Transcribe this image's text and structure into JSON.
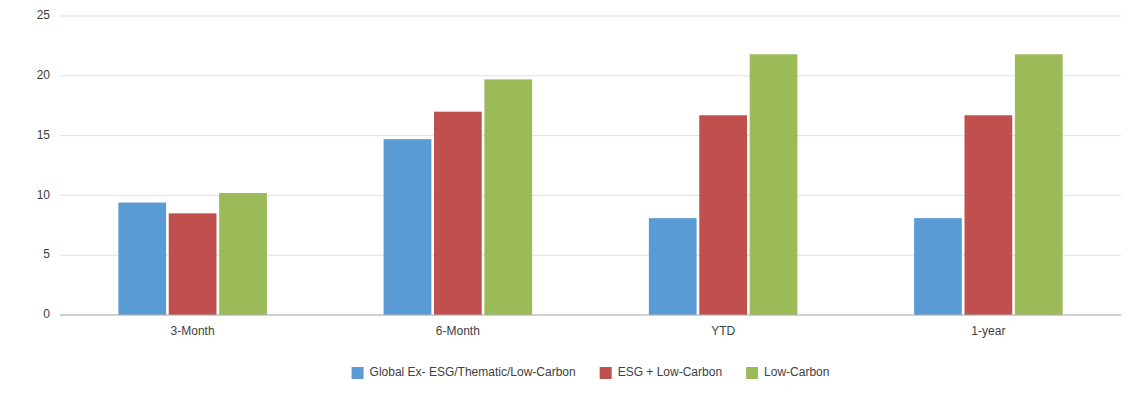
{
  "chart_data": {
    "type": "bar",
    "categories": [
      "3-Month",
      "6-Month",
      "YTD",
      "1-year"
    ],
    "series": [
      {
        "name": "Global Ex- ESG/Thematic/Low-Carbon",
        "values": [
          9.4,
          14.7,
          8.1,
          8.1
        ],
        "color": "#5b9bd5"
      },
      {
        "name": "ESG + Low-Carbon",
        "values": [
          8.5,
          17.0,
          16.7,
          16.7
        ],
        "color": "#c0504d"
      },
      {
        "name": "Low-Carbon",
        "values": [
          10.2,
          19.7,
          21.8,
          21.8
        ],
        "color": "#9bbb59"
      }
    ],
    "ylim": [
      0,
      25
    ],
    "yticks": [
      0,
      5,
      10,
      15,
      20,
      25
    ],
    "grid": true,
    "legend": "bottom"
  }
}
